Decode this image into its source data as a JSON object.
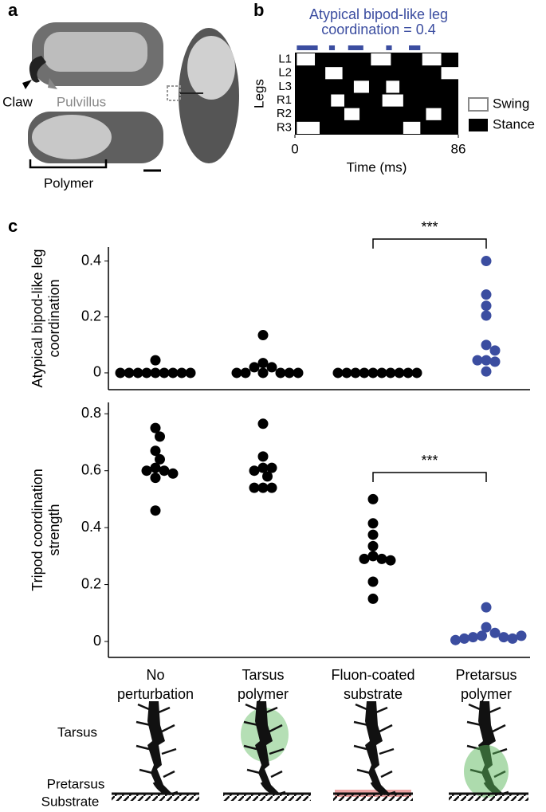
{
  "panel_labels": [
    "a",
    "b",
    "c"
  ],
  "photo_labels": {
    "claw": "Claw",
    "pulvillus": "Pulvillus",
    "polymer": "Polymer"
  },
  "chart_data": [
    {
      "type": "gait",
      "title_lines": [
        "Atypical bipod-like leg",
        "coordination = 0.4"
      ],
      "title_color": "#3b4da0",
      "y_label": "Legs",
      "x_label": "Time (ms)",
      "categories": [
        "L1",
        "L2",
        "L3",
        "R1",
        "R2",
        "R3"
      ],
      "swing": [
        [
          [
            1,
            10.5
          ],
          [
            40,
            50.5
          ],
          [
            67,
            77
          ]
        ],
        [
          [
            16,
            25
          ],
          [
            77,
            86
          ]
        ],
        [
          [
            31,
            39
          ],
          [
            48,
            55
          ]
        ],
        [
          [
            19,
            26
          ],
          [
            46,
            57
          ]
        ],
        [
          [
            26,
            34
          ],
          [
            69,
            77
          ]
        ],
        [
          [
            1,
            13
          ],
          [
            57,
            66
          ]
        ]
      ],
      "bipod_periods": [
        [
          1,
          12
        ],
        [
          18,
          21
        ],
        [
          28,
          36
        ],
        [
          48,
          51
        ],
        [
          60,
          66
        ]
      ],
      "xlim": [
        0,
        86
      ],
      "xticks": [
        0,
        86
      ],
      "legend": [
        "Swing",
        "Stance"
      ]
    },
    {
      "type": "dot",
      "y_label_lines": [
        "Atypical bipod-like leg",
        "coordination"
      ],
      "ylim": [
        -0.06,
        0.45
      ],
      "yticks": [
        0,
        0.2,
        0.4
      ],
      "colors": [
        "#000000",
        "#000000",
        "#000000",
        "#3b4da0"
      ],
      "values": [
        [
          0,
          0,
          0,
          0,
          0,
          0,
          0,
          0,
          0,
          0.045
        ],
        [
          0.135,
          0.035,
          0.02,
          0.02,
          0,
          0,
          0,
          0,
          0,
          0
        ],
        [
          0,
          0,
          0,
          0,
          0,
          0,
          0,
          0,
          0,
          0
        ],
        [
          0.4,
          0.28,
          0.24,
          0.205,
          0.1,
          0.08,
          0.045,
          0.04,
          0.045,
          0.005
        ]
      ],
      "annotation": "***"
    },
    {
      "type": "dot",
      "y_label_lines": [
        "Tripod coordination",
        "strength"
      ],
      "ylim": [
        -0.056,
        0.84
      ],
      "yticks": [
        0,
        0.2,
        0.4,
        0.6,
        0.8
      ],
      "colors": [
        "#000000",
        "#000000",
        "#000000",
        "#3b4da0"
      ],
      "values": [
        [
          0.75,
          0.72,
          0.67,
          0.64,
          0.61,
          0.6,
          0.6,
          0.59,
          0.575,
          0.46
        ],
        [
          0.765,
          0.65,
          0.61,
          0.61,
          0.6,
          0.58,
          0.54,
          0.54,
          0.54
        ],
        [
          0.5,
          0.415,
          0.375,
          0.335,
          0.3,
          0.29,
          0.29,
          0.285,
          0.21,
          0.15
        ],
        [
          0.12,
          0.05,
          0.03,
          0.02,
          0.015,
          0.015,
          0.01,
          0.01,
          0.005,
          0.02
        ]
      ],
      "annotation": "***",
      "categories": [
        [
          "No",
          "perturbation"
        ],
        [
          "Tarsus",
          "polymer"
        ],
        [
          "Fluon-coated",
          "substrate"
        ],
        [
          "Pretarsus",
          "polymer"
        ]
      ]
    }
  ],
  "illustration_labels": [
    "Tarsus",
    "Pretarsus",
    "Substrate"
  ]
}
